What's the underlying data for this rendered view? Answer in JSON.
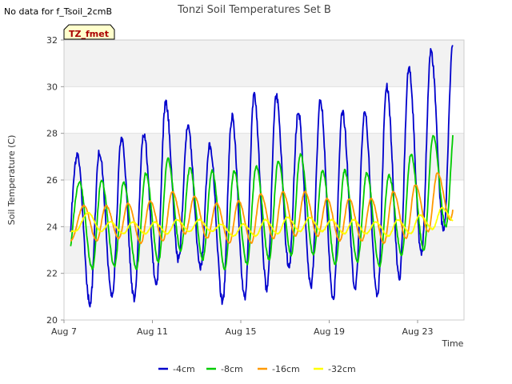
{
  "chart_data": {
    "type": "line",
    "title": "Tonzi Soil Temperatures Set B",
    "notice": "No data for f_Tsoil_2cmB",
    "badge": "TZ_fmet",
    "xlabel": "Time",
    "ylabel": "Soil Temperature (C)",
    "x_ticks": [
      {
        "day": 7,
        "label": "Aug 7"
      },
      {
        "day": 11,
        "label": "Aug 11"
      },
      {
        "day": 15,
        "label": "Aug 15"
      },
      {
        "day": 19,
        "label": "Aug 19"
      },
      {
        "day": 23,
        "label": "Aug 23"
      }
    ],
    "xlim": [
      7,
      25.1
    ],
    "ylim": [
      20,
      32
    ],
    "y_ticks": [
      20,
      22,
      24,
      26,
      28,
      30,
      32
    ],
    "grid": "horizontal bands",
    "legend_position": "bottom",
    "day_peaks": [
      7.6,
      8.6,
      9.6,
      10.6,
      11.6,
      12.6,
      13.6,
      14.6,
      15.6,
      16.6,
      17.6,
      18.6,
      19.6,
      20.6,
      21.6,
      22.6,
      23.6,
      24.6
    ],
    "series": [
      {
        "name": "-4cm",
        "color": "#0000cc",
        "x_range": [
          7.3,
          24.6
        ],
        "lag": 0,
        "shape": 0.18,
        "max": [
          27.0,
          27.2,
          27.8,
          28.0,
          29.3,
          28.3,
          27.5,
          28.7,
          29.6,
          29.6,
          28.9,
          29.4,
          28.9,
          28.9,
          30.0,
          30.8,
          31.5,
          31.9
        ],
        "min": [
          20.7,
          21.0,
          20.9,
          21.5,
          22.6,
          22.3,
          20.8,
          20.9,
          21.3,
          22.3,
          21.4,
          20.9,
          21.4,
          21.0,
          21.8,
          22.8,
          23.8,
          23.9
        ]
      },
      {
        "name": "-8cm",
        "color": "#00cc00",
        "x_range": [
          7.3,
          24.6
        ],
        "lag": 0.1,
        "shape": 0.3,
        "max": [
          25.9,
          26.0,
          25.9,
          26.3,
          26.9,
          26.5,
          26.4,
          26.4,
          26.6,
          26.8,
          27.1,
          26.4,
          26.4,
          26.3,
          26.2,
          27.1,
          27.9,
          28.6
        ],
        "min": [
          22.2,
          22.3,
          22.2,
          22.5,
          23.0,
          22.6,
          22.2,
          22.4,
          22.6,
          22.8,
          22.8,
          22.4,
          22.5,
          22.3,
          22.8,
          23.0,
          24.0,
          24.6
        ]
      },
      {
        "name": "-16cm",
        "color": "#ff9900",
        "x_range": [
          7.3,
          24.6
        ],
        "lag": 0.3,
        "shape": 0.4,
        "max": [
          24.9,
          24.9,
          25.0,
          25.1,
          25.5,
          25.3,
          25.0,
          25.1,
          25.4,
          25.5,
          25.5,
          25.2,
          25.2,
          25.2,
          25.5,
          25.8,
          26.3,
          26.8
        ],
        "min": [
          23.4,
          23.5,
          23.3,
          23.4,
          23.7,
          23.5,
          23.3,
          23.3,
          23.5,
          23.6,
          23.6,
          23.4,
          23.4,
          23.3,
          23.5,
          23.8,
          24.3,
          24.7
        ]
      },
      {
        "name": "-32cm",
        "color": "#ffff00",
        "x_range": [
          7.3,
          24.6
        ],
        "lag": 0.5,
        "shape": 0.5,
        "max": [
          24.6,
          24.2,
          24.2,
          24.2,
          24.3,
          24.3,
          24.1,
          24.1,
          24.3,
          24.4,
          24.4,
          24.3,
          24.3,
          24.2,
          24.3,
          24.5,
          24.8,
          25.1
        ],
        "min": [
          23.8,
          23.7,
          23.7,
          23.7,
          23.8,
          23.8,
          23.6,
          23.6,
          23.7,
          23.8,
          23.8,
          23.7,
          23.7,
          23.6,
          23.7,
          23.9,
          24.2,
          24.5
        ]
      }
    ]
  }
}
